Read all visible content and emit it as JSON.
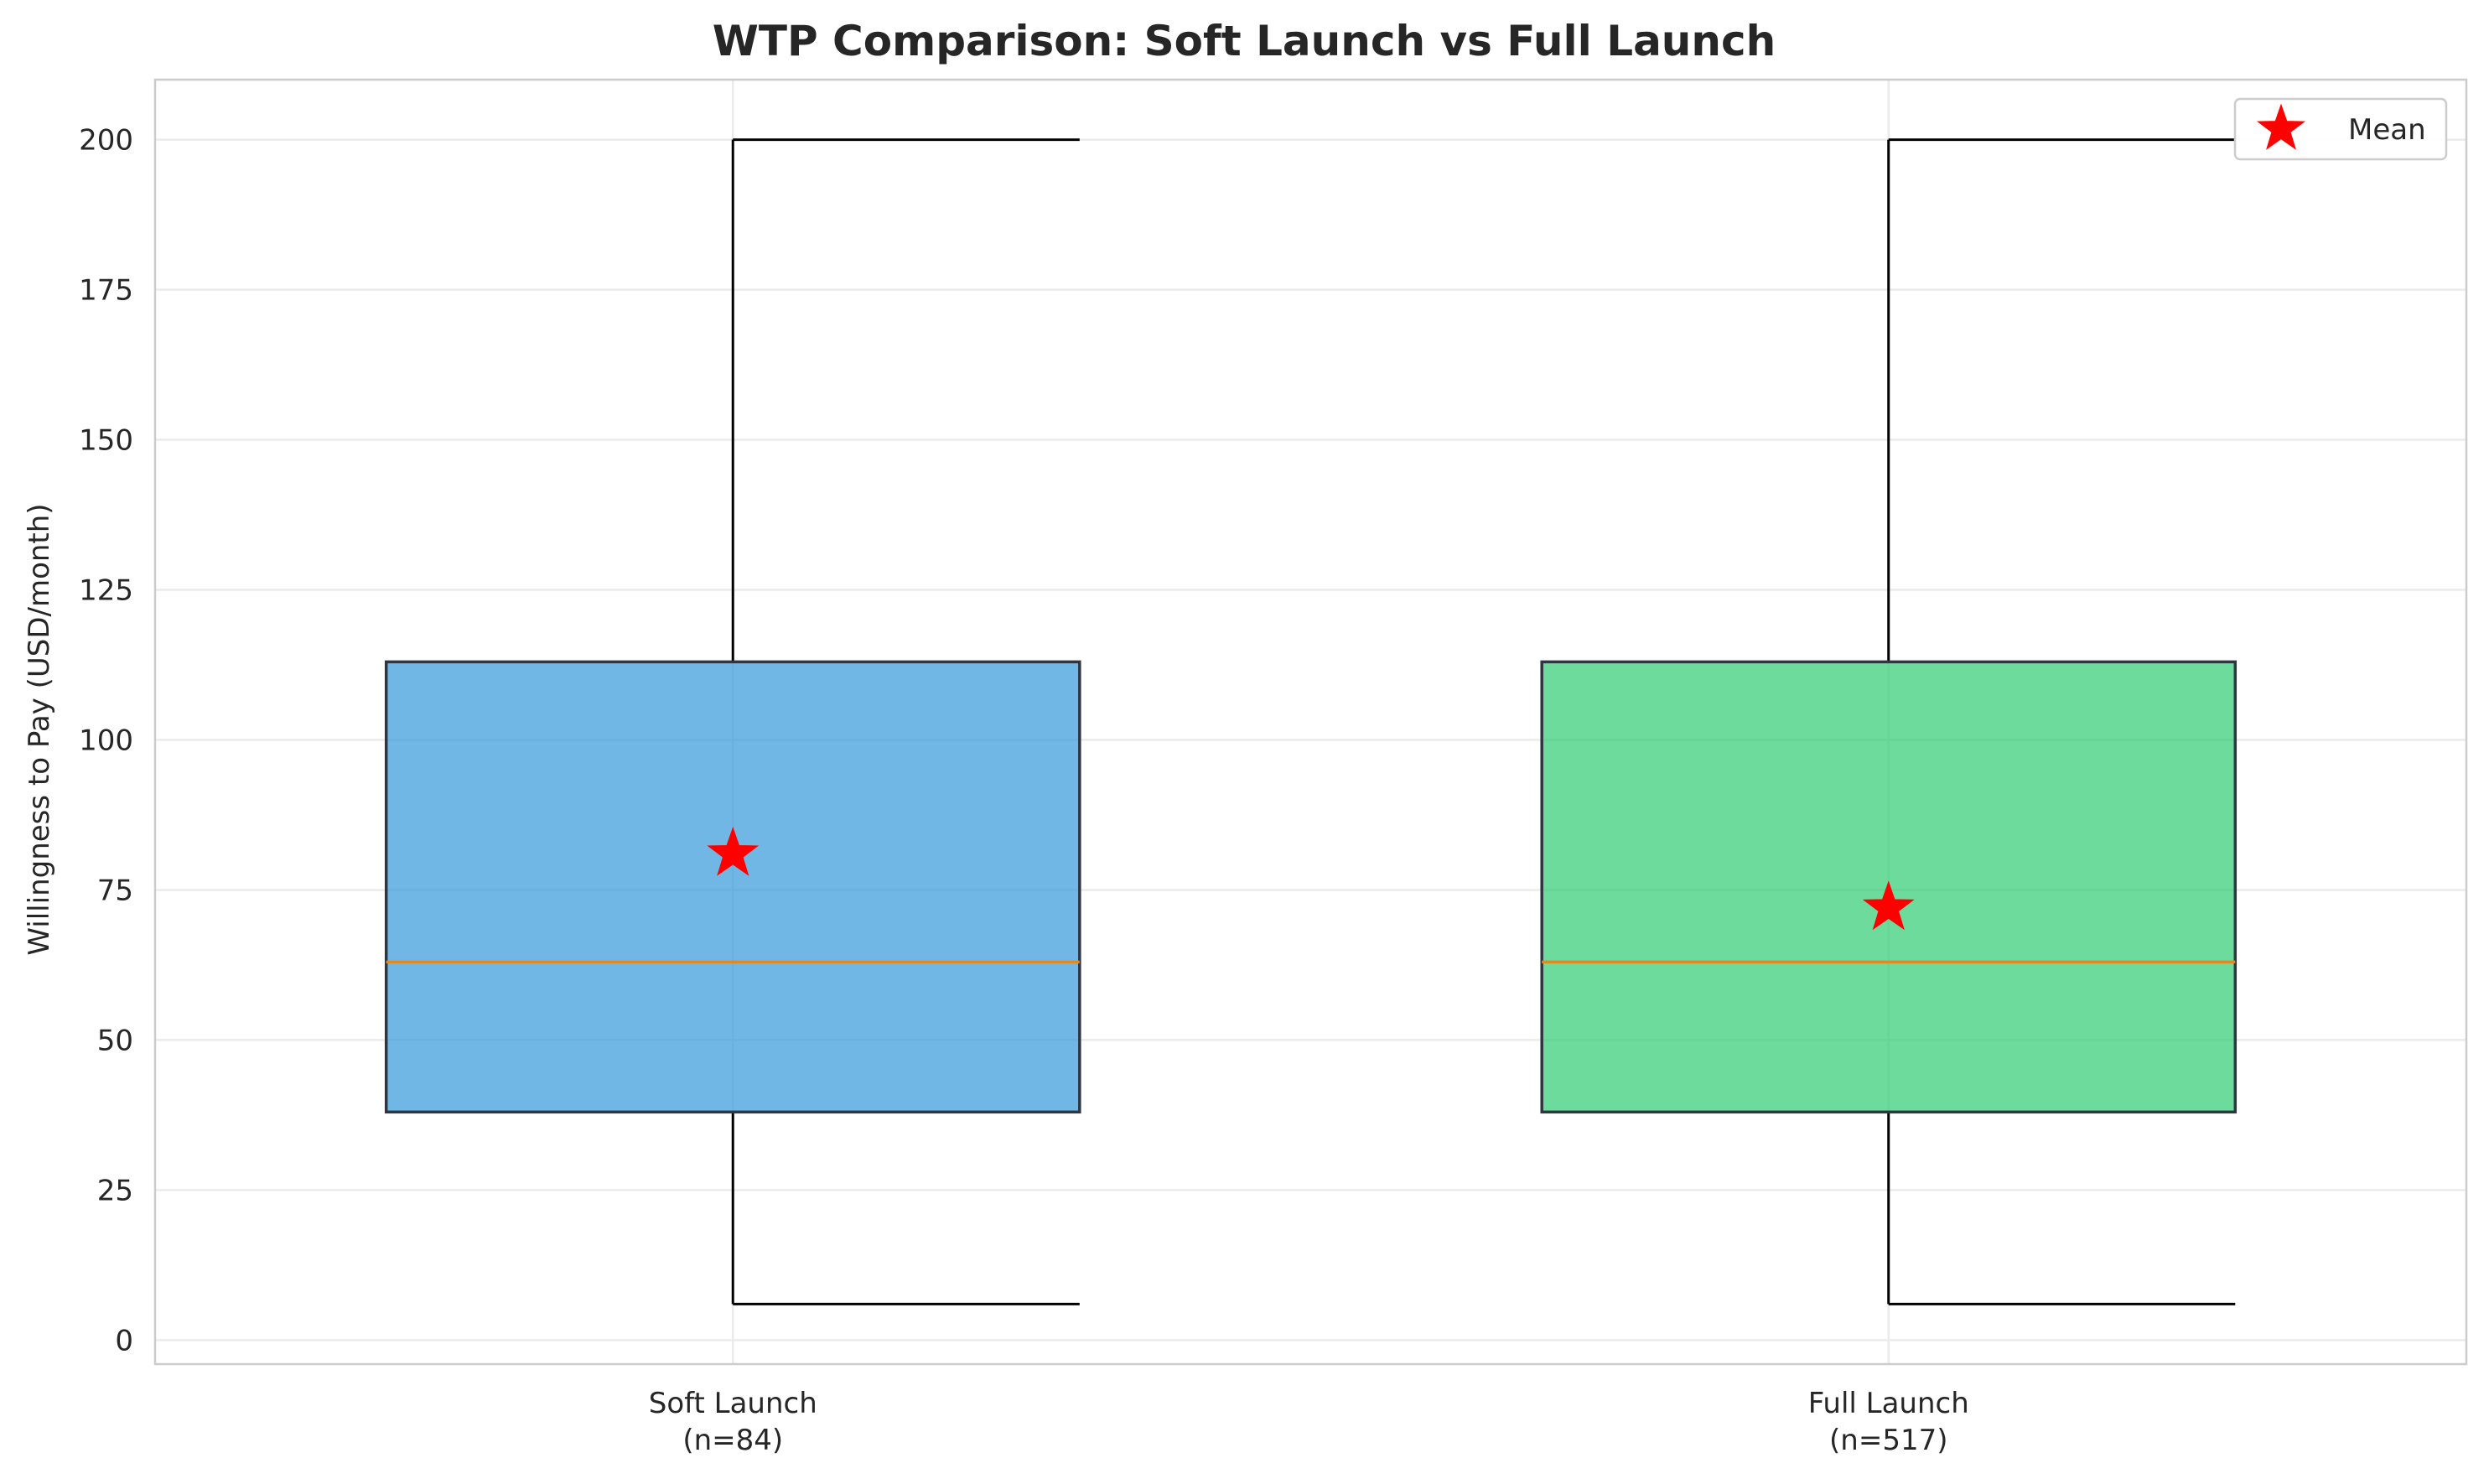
{
  "chart_data": {
    "type": "box",
    "title": "WTP Comparison: Soft Launch vs Full Launch",
    "xlabel": "",
    "ylabel": "Willingness to Pay (USD/month)",
    "ylim": [
      -4,
      210
    ],
    "yticks": [
      0,
      25,
      50,
      75,
      100,
      125,
      150,
      175,
      200
    ],
    "grid": true,
    "legend": {
      "placement": "top-right",
      "entries": [
        {
          "label": "Mean",
          "marker": "star",
          "color": "#ff0000"
        }
      ]
    },
    "categories": [
      {
        "label": "Soft Launch",
        "sublabel": "(n=84)"
      },
      {
        "label": "Full Launch",
        "sublabel": "(n=517)"
      }
    ],
    "series": [
      {
        "category": "Soft Launch",
        "color": "#3498db",
        "whisker_low": 6,
        "q1": 38,
        "median": 63,
        "q3": 113,
        "whisker_high": 200,
        "mean": 81
      },
      {
        "category": "Full Launch",
        "color": "#2ecc71",
        "whisker_low": 6,
        "q1": 38,
        "median": 63,
        "q3": 113,
        "whisker_high": 200,
        "mean": 72
      }
    ],
    "colors": {
      "median_line": "#e08a24",
      "mean_marker": "#ff0000",
      "box_edge": "#2f3640",
      "whisker": "#000000",
      "grid": "#ebebeb",
      "frame": "#cccccc"
    }
  }
}
